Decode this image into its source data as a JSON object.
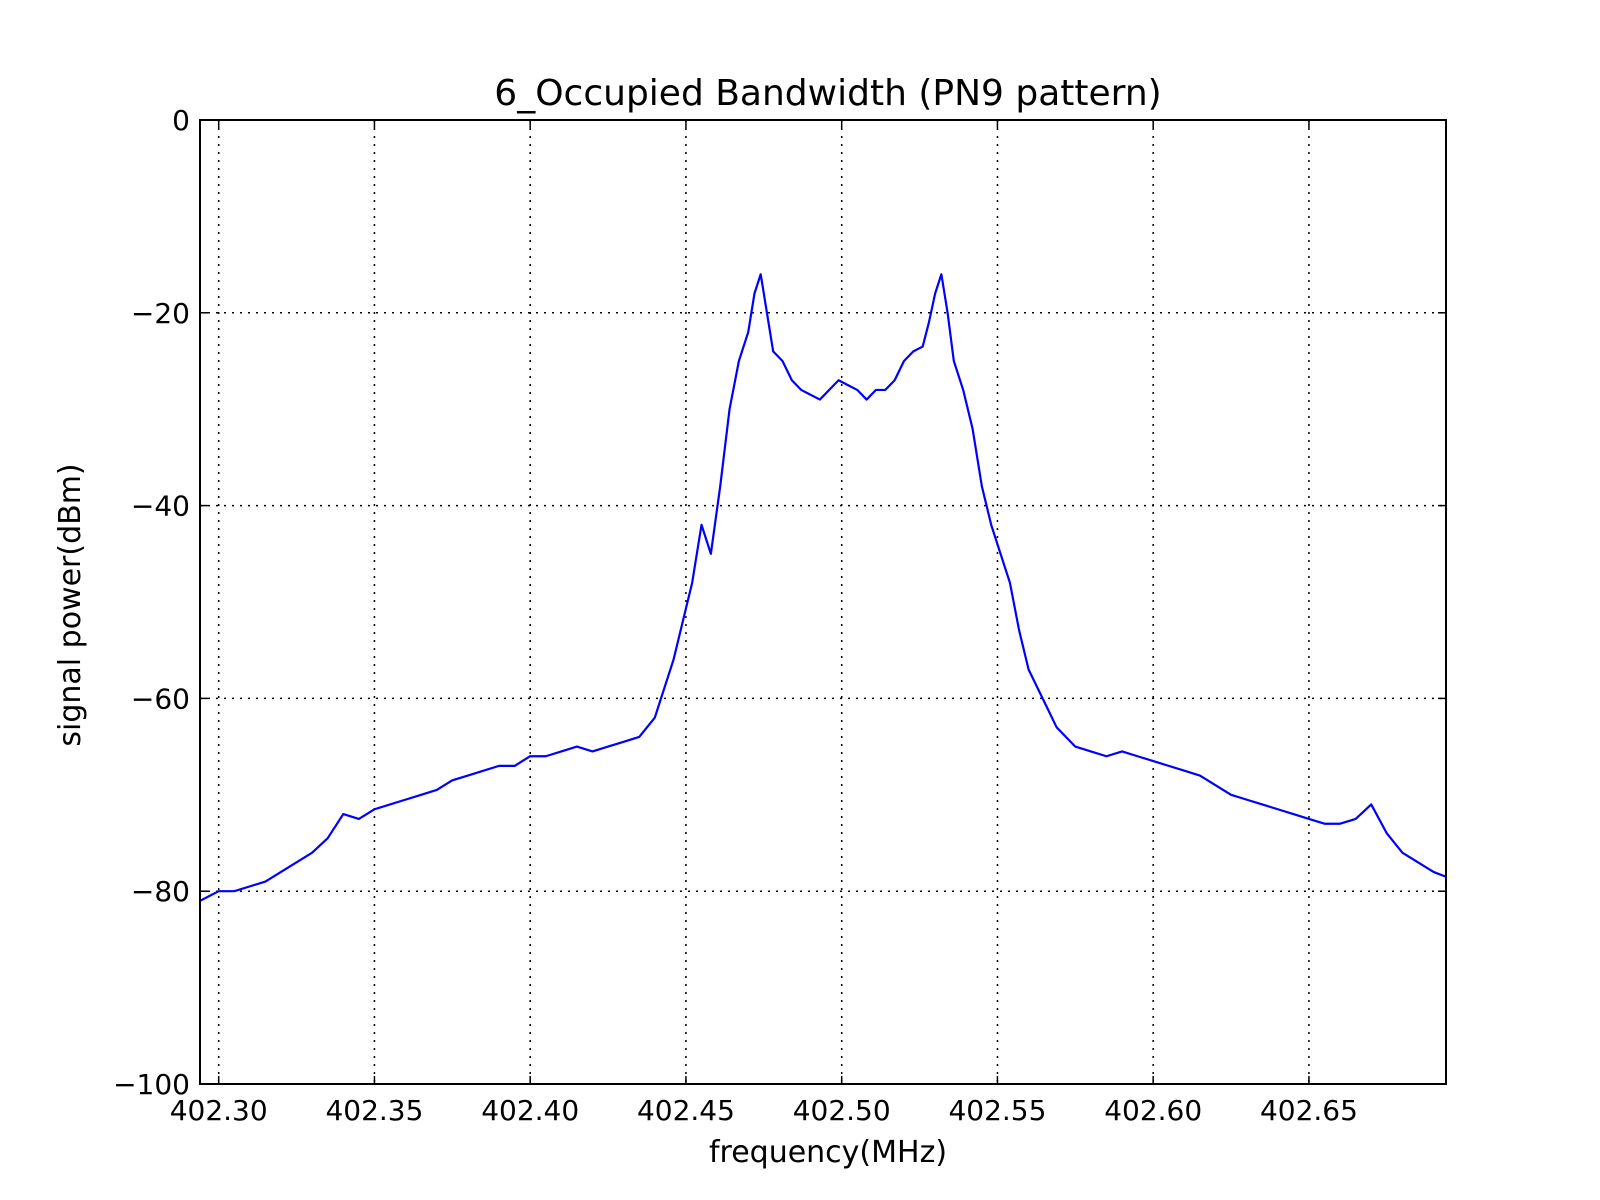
{
  "chart_data": {
    "type": "line",
    "title": "6_Occupied Bandwidth (PN9 pattern)",
    "xlabel": "frequency(MHz)",
    "ylabel": "signal power(dBm)",
    "xlim": [
      402.294,
      402.694
    ],
    "ylim": [
      -100,
      0
    ],
    "xticks": [
      402.3,
      402.35,
      402.4,
      402.45,
      402.5,
      402.55,
      402.6,
      402.65
    ],
    "xtick_labels": [
      "402.30",
      "402.35",
      "402.40",
      "402.45",
      "402.50",
      "402.55",
      "402.60",
      "402.65"
    ],
    "yticks": [
      0,
      -20,
      -40,
      -60,
      -80,
      -100
    ],
    "ytick_labels": [
      "0",
      "−20",
      "−40",
      "−60",
      "−80",
      "−100"
    ],
    "grid": true,
    "legend": "none",
    "series": [
      {
        "color": "#0000ff",
        "x": [
          402.294,
          402.3,
          402.305,
          402.31,
          402.315,
          402.32,
          402.325,
          402.33,
          402.335,
          402.34,
          402.345,
          402.35,
          402.355,
          402.36,
          402.365,
          402.37,
          402.375,
          402.38,
          402.385,
          402.39,
          402.395,
          402.4,
          402.405,
          402.41,
          402.415,
          402.42,
          402.425,
          402.43,
          402.435,
          402.44,
          402.443,
          402.446,
          402.449,
          402.452,
          402.455,
          402.458,
          402.461,
          402.464,
          402.467,
          402.47,
          402.472,
          402.474,
          402.476,
          402.478,
          402.481,
          402.484,
          402.487,
          402.49,
          402.493,
          402.496,
          402.499,
          402.502,
          402.505,
          402.508,
          402.511,
          402.514,
          402.517,
          402.52,
          402.523,
          402.526,
          402.528,
          402.53,
          402.532,
          402.534,
          402.536,
          402.539,
          402.542,
          402.545,
          402.548,
          402.551,
          402.554,
          402.557,
          402.56,
          402.563,
          402.566,
          402.569,
          402.572,
          402.575,
          402.58,
          402.585,
          402.59,
          402.595,
          402.6,
          402.605,
          402.61,
          402.615,
          402.62,
          402.625,
          402.63,
          402.635,
          402.64,
          402.645,
          402.65,
          402.655,
          402.66,
          402.665,
          402.67,
          402.675,
          402.68,
          402.685,
          402.69,
          402.694
        ],
        "y": [
          -81,
          -80,
          -80,
          -79.5,
          -79,
          -78,
          -77,
          -76,
          -74.5,
          -72,
          -72.5,
          -71.5,
          -71,
          -70.5,
          -70,
          -69.5,
          -68.5,
          -68,
          -67.5,
          -67,
          -67,
          -66,
          -66,
          -65.5,
          -65,
          -65.5,
          -65,
          -64.5,
          -64,
          -62,
          -59,
          -56,
          -52,
          -48,
          -42,
          -45,
          -38,
          -30,
          -25,
          -22,
          -18,
          -16,
          -20,
          -24,
          -25,
          -27,
          -28,
          -28.5,
          -29,
          -28,
          -27,
          -27.5,
          -28,
          -29,
          -28,
          -28,
          -27,
          -25,
          -24,
          -23.5,
          -21,
          -18,
          -16,
          -20,
          -25,
          -28,
          -32,
          -38,
          -42,
          -45,
          -48,
          -53,
          -57,
          -59,
          -61,
          -63,
          -64,
          -65,
          -65.5,
          -66,
          -65.5,
          -66,
          -66.5,
          -67,
          -67.5,
          -68,
          -69,
          -70,
          -70.5,
          -71,
          -71.5,
          -72,
          -72.5,
          -73,
          -73,
          -72.5,
          -71,
          -74,
          -76,
          -77,
          -78,
          -78.5
        ]
      }
    ]
  }
}
